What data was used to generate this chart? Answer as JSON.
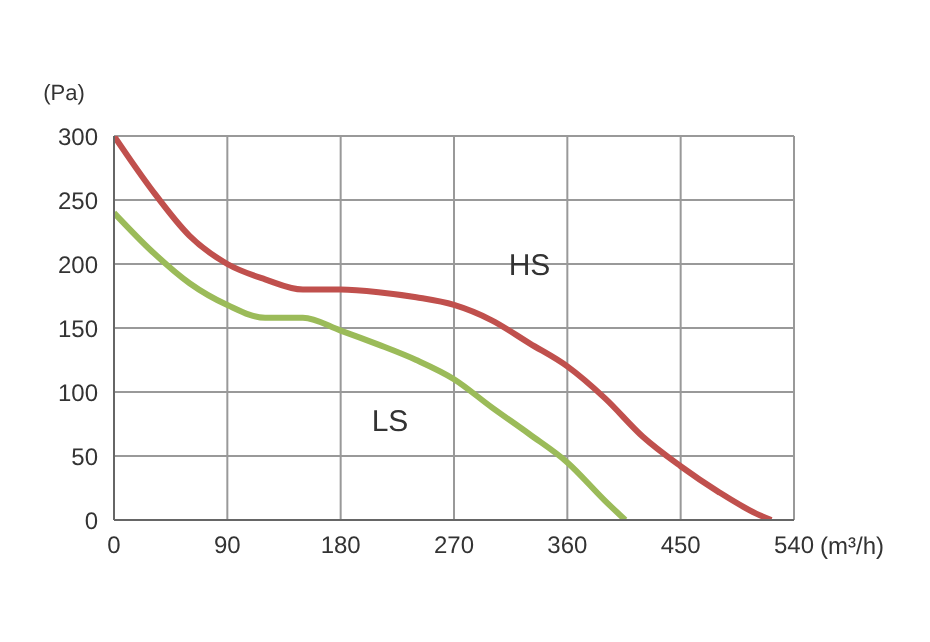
{
  "chart_data": {
    "type": "line",
    "xlabel": "(m³/h)",
    "ylabel": "(Pa)",
    "xlim": [
      0,
      540
    ],
    "xticks": [
      0,
      90,
      180,
      270,
      360,
      450,
      540
    ],
    "ylim": [
      0,
      300
    ],
    "yticks": [
      0,
      50,
      100,
      150,
      200,
      250,
      300
    ],
    "grid": true,
    "marker": "none",
    "line_style": "solid",
    "series": [
      {
        "name": "HS",
        "color": "#c0504d",
        "x": [
          0,
          30,
          60,
          90,
          120,
          150,
          180,
          210,
          240,
          270,
          300,
          330,
          360,
          390,
          420,
          450,
          480,
          510,
          522
        ],
        "values": [
          300,
          258,
          222,
          200,
          188,
          180,
          180,
          178,
          174,
          168,
          156,
          138,
          120,
          95,
          65,
          42,
          22,
          5,
          0
        ]
      },
      {
        "name": "LS",
        "color": "#9bbb59",
        "x": [
          0,
          30,
          60,
          90,
          120,
          150,
          180,
          210,
          240,
          270,
          300,
          330,
          360,
          390,
          406
        ],
        "values": [
          240,
          210,
          185,
          168,
          158,
          158,
          148,
          137,
          125,
          110,
          88,
          67,
          45,
          15,
          0
        ]
      }
    ]
  }
}
